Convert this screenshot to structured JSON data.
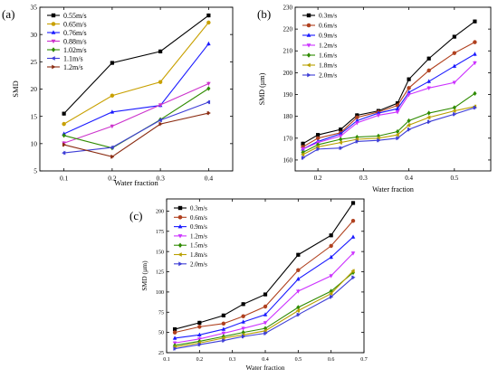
{
  "figure": {
    "panels_text": [
      "(a)",
      "(b)",
      "(c)"
    ]
  },
  "chart_data": [
    {
      "type": "line",
      "panel_label": "(a)",
      "xlabel": "Water fraction",
      "ylabel": "SMD",
      "xlim": [
        0.05,
        0.45
      ],
      "ylim": [
        5,
        35
      ],
      "xticks": [
        0.1,
        0.2,
        0.3,
        0.4
      ],
      "yticks": [
        5,
        10,
        15,
        20,
        25,
        30,
        35
      ],
      "legend_position": "top-left",
      "x": [
        0.1,
        0.2,
        0.3,
        0.4
      ],
      "series": [
        {
          "name": "0.55m/s",
          "color": "#000000",
          "marker": "square",
          "values": [
            15.5,
            24.8,
            26.9,
            33.5
          ]
        },
        {
          "name": "0.65m/s",
          "color": "#c8a000",
          "marker": "circle",
          "values": [
            13.6,
            18.8,
            21.3,
            32.2
          ]
        },
        {
          "name": "0.76m/s",
          "color": "#1a1aff",
          "marker": "triangle-up",
          "values": [
            11.8,
            15.8,
            17.0,
            28.3
          ]
        },
        {
          "name": "0.88m/s",
          "color": "#cc33cc",
          "marker": "triangle-down",
          "values": [
            10.1,
            13.2,
            17.1,
            21.0
          ]
        },
        {
          "name": "1.02m/s",
          "color": "#2e8b00",
          "marker": "diamond",
          "values": [
            11.5,
            9.2,
            14.4,
            20.1
          ]
        },
        {
          "name": "1.1m/s",
          "color": "#3d3dd6",
          "marker": "triangle-left",
          "values": [
            8.3,
            9.3,
            14.3,
            17.6
          ]
        },
        {
          "name": "1.2m/s",
          "color": "#8b2c12",
          "marker": "triangle-right",
          "values": [
            9.8,
            7.6,
            13.6,
            15.6
          ]
        }
      ]
    },
    {
      "type": "line",
      "panel_label": "(b)",
      "xlabel": "Water fraction",
      "ylabel": "SMD (µm)",
      "xlim": [
        0.15,
        0.58
      ],
      "ylim": [
        155,
        230
      ],
      "xticks": [
        0.2,
        0.3,
        0.4,
        0.5
      ],
      "yticks": [
        160,
        170,
        180,
        190,
        200,
        210,
        220,
        230
      ],
      "legend_position": "top-left",
      "x": [
        0.167,
        0.2,
        0.25,
        0.286,
        0.333,
        0.375,
        0.4,
        0.444,
        0.5,
        0.545
      ],
      "series": [
        {
          "name": "0.3m/s",
          "color": "#000000",
          "marker": "square",
          "values": [
            167.5,
            171.5,
            174.0,
            180.5,
            182.5,
            186.0,
            197.0,
            206.5,
            216.5,
            223.5
          ]
        },
        {
          "name": "0.6m/s",
          "color": "#b0411f",
          "marker": "circle",
          "values": [
            166.0,
            170.0,
            172.5,
            179.5,
            182.0,
            185.0,
            193.0,
            201.0,
            209.0,
            214.0
          ]
        },
        {
          "name": "0.9m/s",
          "color": "#1a1aff",
          "marker": "triangle-up",
          "values": [
            165.0,
            168.5,
            172.0,
            178.0,
            181.5,
            183.5,
            191.0,
            196.0,
            203.0,
            208.5
          ]
        },
        {
          "name": "1.2m/s",
          "color": "#cc33ff",
          "marker": "triangle-down",
          "values": [
            165.0,
            168.0,
            171.0,
            177.0,
            180.5,
            182.0,
            190.0,
            193.0,
            195.5,
            204.5
          ]
        },
        {
          "name": "1.6m/s",
          "color": "#2e8b00",
          "marker": "diamond",
          "values": [
            163.5,
            167.0,
            169.5,
            170.5,
            171.0,
            173.0,
            178.0,
            181.5,
            184.0,
            190.5
          ]
        },
        {
          "name": "1.8m/s",
          "color": "#b8a000",
          "marker": "triangle-left",
          "values": [
            162.5,
            166.0,
            168.0,
            169.5,
            170.0,
            171.5,
            176.0,
            179.5,
            182.5,
            184.5
          ]
        },
        {
          "name": "2.0m/s",
          "color": "#3d3dd6",
          "marker": "triangle-right",
          "values": [
            161.0,
            165.0,
            165.5,
            168.5,
            169.0,
            170.0,
            174.0,
            177.5,
            181.0,
            184.0
          ]
        }
      ]
    },
    {
      "type": "line",
      "panel_label": "(c)",
      "xlabel": "Water fraction",
      "ylabel": "SMD (µm)",
      "xlim": [
        0.1,
        0.7
      ],
      "ylim": [
        25,
        215
      ],
      "xticks": [
        0.1,
        0.2,
        0.3,
        0.4,
        0.5,
        0.6,
        0.7
      ],
      "yticks": [
        25,
        50,
        75,
        100,
        125,
        150,
        175,
        200
      ],
      "legend_position": "top-left",
      "x": [
        0.125,
        0.2,
        0.273,
        0.333,
        0.4,
        0.5,
        0.6,
        0.667
      ],
      "series": [
        {
          "name": "0.3m/s",
          "color": "#000000",
          "marker": "square",
          "values": [
            54,
            62,
            71,
            85,
            97,
            146,
            170,
            210
          ]
        },
        {
          "name": "0.6m/s",
          "color": "#b0411f",
          "marker": "circle",
          "values": [
            50,
            57,
            61,
            70,
            82,
            127,
            157,
            188
          ]
        },
        {
          "name": "0.9m/s",
          "color": "#1a1aff",
          "marker": "triangle-up",
          "values": [
            43,
            47,
            54,
            63,
            72,
            116,
            143,
            168
          ]
        },
        {
          "name": "1.2m/s",
          "color": "#cc33ff",
          "marker": "triangle-down",
          "values": [
            37,
            42,
            49,
            55,
            62,
            101,
            120,
            148
          ]
        },
        {
          "name": "1.5m/s",
          "color": "#2e8b00",
          "marker": "diamond",
          "values": [
            34,
            39,
            45,
            50,
            55,
            81,
            101,
            124
          ]
        },
        {
          "name": "1.8m/s",
          "color": "#b8a000",
          "marker": "triangle-left",
          "values": [
            32,
            37,
            43,
            47,
            52,
            77,
            98,
            126
          ]
        },
        {
          "name": "2.0m/s",
          "color": "#3d3dd6",
          "marker": "triangle-right",
          "values": [
            30,
            35,
            40,
            45,
            49,
            72,
            94,
            118
          ]
        }
      ]
    }
  ]
}
